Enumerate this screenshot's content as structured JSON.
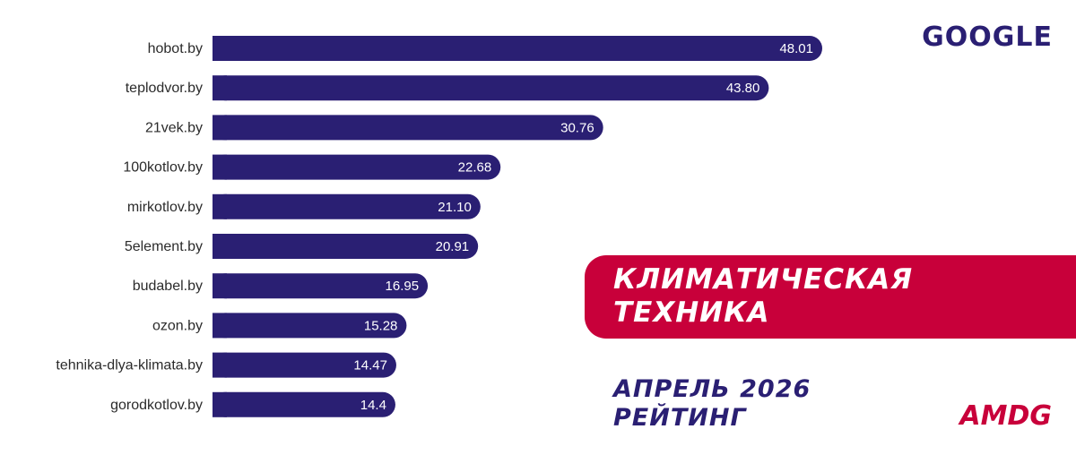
{
  "source_label": "GOOGLE",
  "banner": {
    "line1": "КЛИМАТИЧЕСКАЯ",
    "line2": "ТЕХНИКА"
  },
  "period": {
    "line1": "АПРЕЛЬ 2026",
    "line2": "РЕЙТИНГ"
  },
  "brand": "AMDG",
  "colors": {
    "bar": "#2a1f73",
    "accent": "#c8003a",
    "text": "#2b2b2b"
  },
  "chart_data": {
    "type": "bar",
    "orientation": "horizontal",
    "categories": [
      "hobot.by",
      "teplodvor.by",
      "21vek.by",
      "100kotlov.by",
      "mirkotlov.by",
      "5element.by",
      "budabel.by",
      "ozon.by",
      "tehnika-dlya-klimata.by",
      "gorodkotlov.by"
    ],
    "values": [
      48.01,
      43.8,
      30.76,
      22.68,
      21.1,
      20.91,
      16.95,
      15.28,
      14.47,
      14.4
    ],
    "value_labels": [
      "48.01",
      "43.80",
      "30.76",
      "22.68",
      "21.10",
      "20.91",
      "16.95",
      "15.28",
      "14.47",
      "14.4"
    ],
    "xlim": [
      0,
      48.01
    ],
    "grid": false,
    "legend": "none"
  }
}
